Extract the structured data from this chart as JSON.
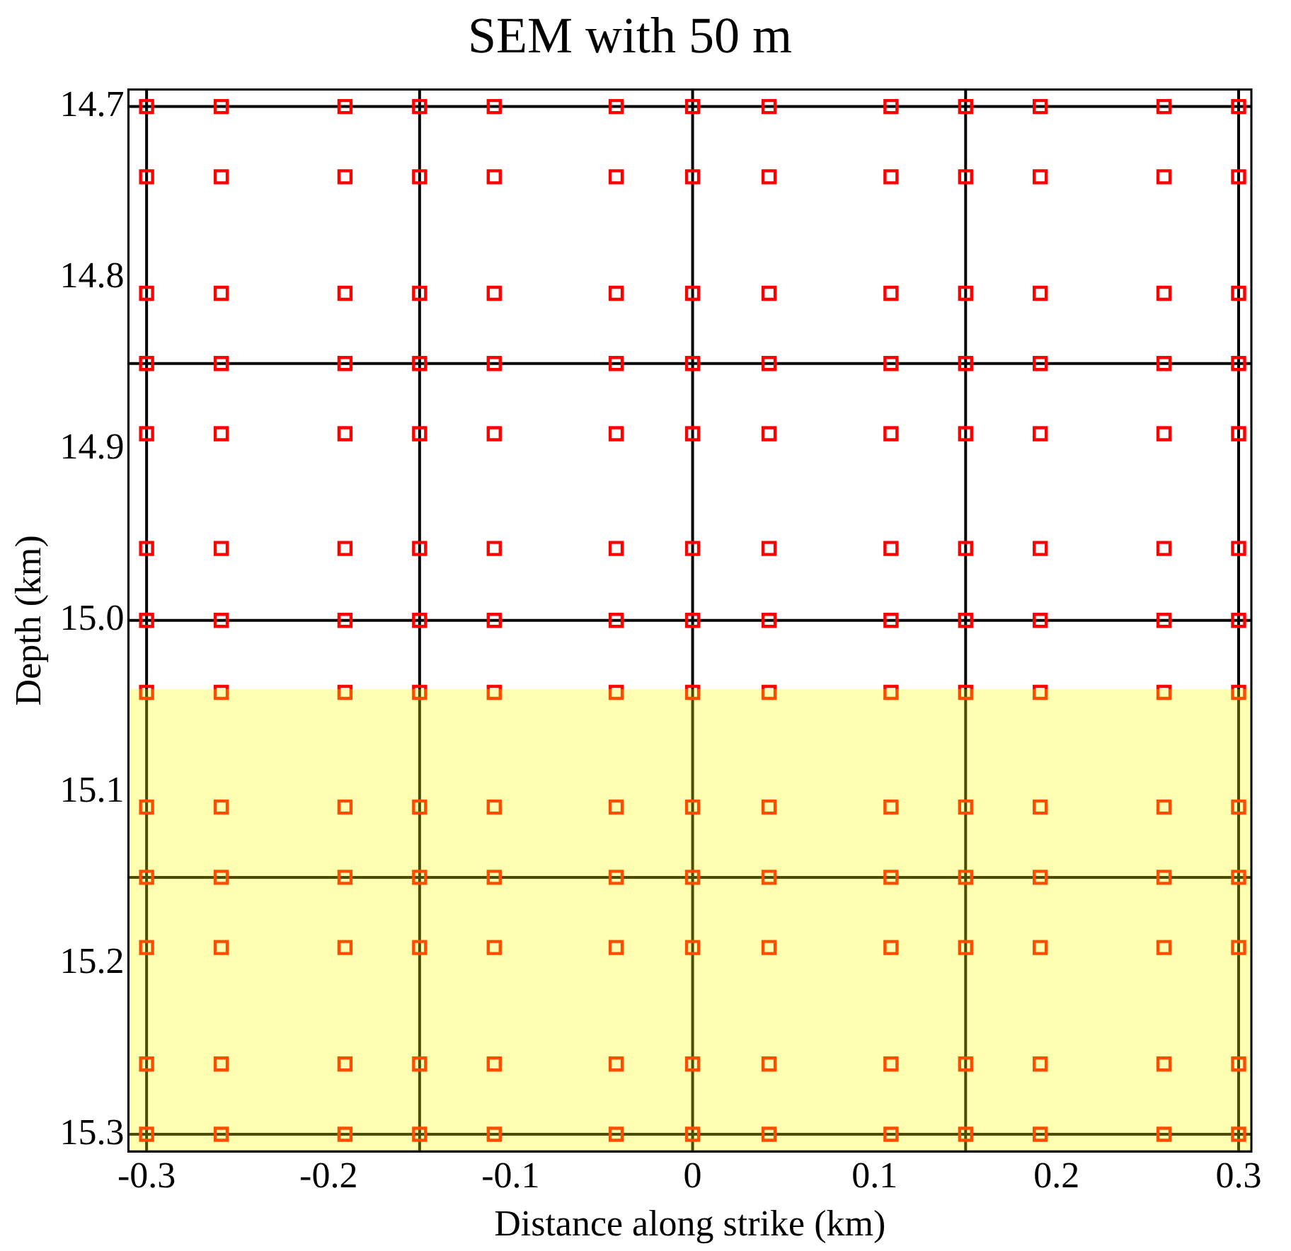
{
  "chart_data": {
    "type": "scatter",
    "title": "SEM with 50 m",
    "xlabel": "Distance along strike (km)",
    "ylabel": "Depth (km)",
    "xlim": [
      -0.31,
      0.307
    ],
    "ylim": [
      15.31,
      14.69
    ],
    "xticks": [
      -0.3,
      -0.2,
      -0.1,
      0,
      0.1,
      0.2,
      0.3
    ],
    "yticks": [
      14.7,
      14.8,
      14.9,
      {
        "value": 15,
        "label": "15.0"
      },
      15.1,
      15.2,
      15.3
    ],
    "grid": false,
    "legend": false,
    "marker": "square",
    "series": [
      {
        "color": "#ff0000",
        "x": [
          -0.3,
          -0.259,
          -0.191,
          -0.15,
          -0.109,
          -0.042,
          0,
          0.042,
          0.109,
          0.15,
          0.191,
          0.259,
          0.3,
          -0.3,
          -0.259,
          -0.191,
          -0.15,
          -0.109,
          -0.042,
          0,
          0.042,
          0.109,
          0.15,
          0.191,
          0.259,
          0.3,
          -0.3,
          -0.259,
          -0.191,
          -0.15,
          -0.109,
          -0.042,
          0,
          0.042,
          0.109,
          0.15,
          0.191,
          0.259,
          0.3,
          -0.3,
          -0.259,
          -0.191,
          -0.15,
          -0.109,
          -0.042,
          0,
          0.042,
          0.109,
          0.15,
          0.191,
          0.259,
          0.3,
          -0.3,
          -0.259,
          -0.191,
          -0.15,
          -0.109,
          -0.042,
          0,
          0.042,
          0.109,
          0.15,
          0.191,
          0.259,
          0.3,
          -0.3,
          -0.259,
          -0.191,
          -0.15,
          -0.109,
          -0.042,
          0,
          0.042,
          0.109,
          0.15,
          0.191,
          0.259,
          0.3,
          -0.3,
          -0.259,
          -0.191,
          -0.15,
          -0.109,
          -0.042,
          0,
          0.042,
          0.109,
          0.15,
          0.191,
          0.259,
          0.3,
          -0.3,
          -0.259,
          -0.191,
          -0.15,
          -0.109,
          -0.042,
          0,
          0.042,
          0.109,
          0.15,
          0.191,
          0.259,
          0.3,
          -0.3,
          -0.259,
          -0.191,
          -0.15,
          -0.109,
          -0.042,
          0,
          0.042,
          0.109,
          0.15,
          0.191,
          0.259,
          0.3,
          -0.3,
          -0.259,
          -0.191,
          -0.15,
          -0.109,
          -0.042,
          0,
          0.042,
          0.109,
          0.15,
          0.191,
          0.259,
          0.3,
          -0.3,
          -0.259,
          -0.191,
          -0.15,
          -0.109,
          -0.042,
          0,
          0.042,
          0.109,
          0.15,
          0.191,
          0.259,
          0.3,
          -0.3,
          -0.259,
          -0.191,
          -0.15,
          -0.109,
          -0.042,
          0,
          0.042,
          0.109,
          0.15,
          0.191,
          0.259,
          0.3,
          -0.3,
          -0.259,
          -0.191,
          -0.15,
          -0.109,
          -0.042,
          0,
          0.042,
          0.109,
          0.15,
          0.191,
          0.259,
          0.3
        ],
        "values": [
          14.7,
          14.7,
          14.7,
          14.7,
          14.7,
          14.7,
          14.7,
          14.7,
          14.7,
          14.7,
          14.7,
          14.7,
          14.7,
          14.741,
          14.741,
          14.741,
          14.741,
          14.741,
          14.741,
          14.741,
          14.741,
          14.741,
          14.741,
          14.741,
          14.741,
          14.741,
          14.809,
          14.809,
          14.809,
          14.809,
          14.809,
          14.809,
          14.809,
          14.809,
          14.809,
          14.809,
          14.809,
          14.809,
          14.809,
          14.85,
          14.85,
          14.85,
          14.85,
          14.85,
          14.85,
          14.85,
          14.85,
          14.85,
          14.85,
          14.85,
          14.85,
          14.85,
          14.891,
          14.891,
          14.891,
          14.891,
          14.891,
          14.891,
          14.891,
          14.891,
          14.891,
          14.891,
          14.891,
          14.891,
          14.891,
          14.958,
          14.958,
          14.958,
          14.958,
          14.958,
          14.958,
          14.958,
          14.958,
          14.958,
          14.958,
          14.958,
          14.958,
          14.958,
          15,
          15,
          15,
          15,
          15,
          15,
          15,
          15,
          15,
          15,
          15,
          15,
          15,
          15.042,
          15.042,
          15.042,
          15.042,
          15.042,
          15.042,
          15.042,
          15.042,
          15.042,
          15.042,
          15.042,
          15.042,
          15.042,
          15.109,
          15.109,
          15.109,
          15.109,
          15.109,
          15.109,
          15.109,
          15.109,
          15.109,
          15.109,
          15.109,
          15.109,
          15.109,
          15.15,
          15.15,
          15.15,
          15.15,
          15.15,
          15.15,
          15.15,
          15.15,
          15.15,
          15.15,
          15.15,
          15.15,
          15.15,
          15.191,
          15.191,
          15.191,
          15.191,
          15.191,
          15.191,
          15.191,
          15.191,
          15.191,
          15.191,
          15.191,
          15.191,
          15.191,
          15.259,
          15.259,
          15.259,
          15.259,
          15.259,
          15.259,
          15.259,
          15.259,
          15.259,
          15.259,
          15.259,
          15.259,
          15.259,
          15.3,
          15.3,
          15.3,
          15.3,
          15.3,
          15.3,
          15.3,
          15.3,
          15.3,
          15.3,
          15.3,
          15.3,
          15.3
        ]
      }
    ],
    "ref_lines": [
      {
        "axis": "x",
        "value": -0.3,
        "color": "#000000"
      },
      {
        "axis": "x",
        "value": -0.15,
        "color": "#000000"
      },
      {
        "axis": "x",
        "value": 0,
        "color": "#000000"
      },
      {
        "axis": "x",
        "value": 0.15,
        "color": "#000000"
      },
      {
        "axis": "x",
        "value": 0.3,
        "color": "#000000"
      },
      {
        "axis": "y",
        "value": 14.7,
        "color": "#000000"
      },
      {
        "axis": "y",
        "value": 14.85,
        "color": "#000000"
      },
      {
        "axis": "y",
        "value": 15,
        "color": "#000000"
      },
      {
        "axis": "y",
        "value": 15.15,
        "color": "#000000"
      },
      {
        "axis": "y",
        "value": 15.3,
        "color": "#000000"
      }
    ],
    "bands": [
      {
        "axis": "y",
        "from": 15.04,
        "to": 15.31,
        "color": "#ffff00"
      }
    ]
  }
}
